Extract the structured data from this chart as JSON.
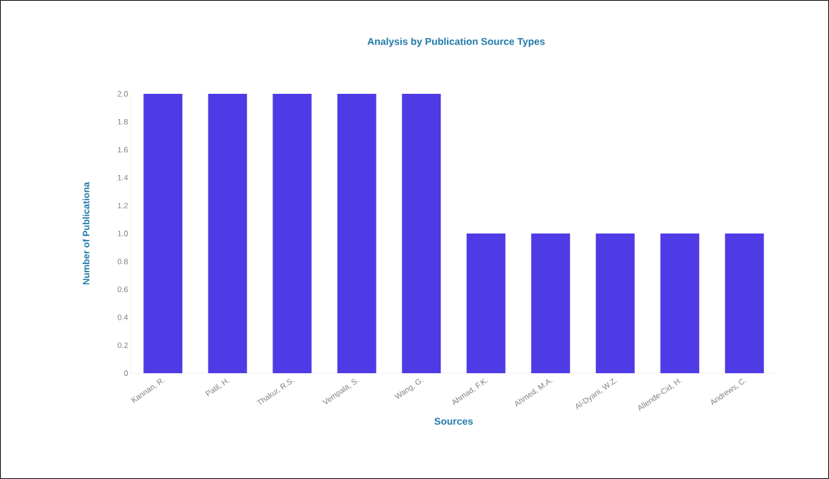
{
  "chart_data": {
    "type": "bar",
    "title": "Analysis by Publication Source Types",
    "xlabel": "Sources",
    "ylabel": "Number of Publicationa",
    "categories": [
      "Kannan, R.",
      "Patil, H.",
      "Thakur, R.S.",
      "Vempala, S.",
      "Wang, G.",
      "Ahmad, F.K.",
      "Ahmed, M.A.",
      "Al-Dyani, W.Z.",
      "Allende-Cid, H.",
      "Andrews, C."
    ],
    "values": [
      2,
      2,
      2,
      2,
      2,
      1,
      1,
      1,
      1,
      1
    ],
    "color": "#4f3be6",
    "ylim": [
      0,
      2
    ],
    "yticks": [
      {
        "value": 0,
        "label": "0"
      },
      0.2,
      0.4,
      0.6,
      0.8,
      {
        "value": 1,
        "label": "1.0"
      },
      1.2,
      1.4,
      1.6,
      1.8,
      {
        "value": 2,
        "label": "2.0"
      }
    ]
  }
}
